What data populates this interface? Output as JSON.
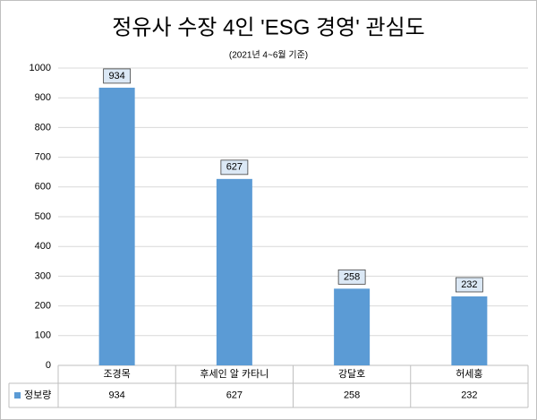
{
  "chart_data": {
    "type": "bar",
    "title": "정유사 수장 4인 'ESG 경영' 관심도",
    "subtitle": "(2021년 4~6월 기준)",
    "categories": [
      "조경목",
      "후세인 알 카타니",
      "강달호",
      "허세홍"
    ],
    "series": [
      {
        "name": "정보량",
        "color": "#5b9bd5",
        "values": [
          934,
          627,
          258,
          232
        ]
      }
    ],
    "ylim": [
      0,
      1000
    ],
    "yticks": [
      0,
      100,
      200,
      300,
      400,
      500,
      600,
      700,
      800,
      900,
      1000
    ],
    "grid": true
  }
}
